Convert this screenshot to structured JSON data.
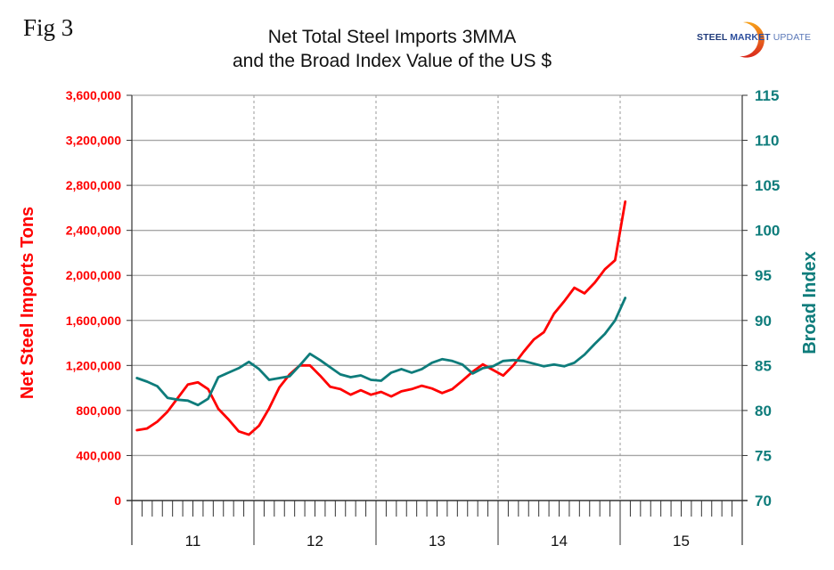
{
  "figure_label": "Fig 3",
  "logo": {
    "part1": "STEEL",
    "part2": "MARKET",
    "part3": "UPDATE"
  },
  "chart_data": {
    "type": "line",
    "title": "Net Total Steel Imports 3MMA",
    "subtitle": "and the Broad Index Value of the US $",
    "xlabel": "",
    "ylabel": "Net Steel Imports Tons",
    "ylabel_right": "Broad Index",
    "ylim": [
      0,
      3600000
    ],
    "ylim_right": [
      70,
      115
    ],
    "yticks": [
      "0",
      "400,000",
      "800,000",
      "1,200,000",
      "1,600,000",
      "2,000,000",
      "2,400,000",
      "2,800,000",
      "3,200,000",
      "3,600,000"
    ],
    "yticks_right": [
      "70",
      "75",
      "80",
      "85",
      "90",
      "95",
      "100",
      "105",
      "110",
      "115"
    ],
    "x_groups": [
      "11",
      "12",
      "13",
      "14",
      "15"
    ],
    "months_per_group": 12,
    "grid": "horizontal solid, vertical dotted at year boundaries",
    "legend": "none",
    "series": [
      {
        "name": "Net Steel Imports Tons (3MMA)",
        "axis": "left",
        "color": "#ff0000",
        "values": [
          625000,
          640000,
          700000,
          790000,
          910000,
          1030000,
          1050000,
          990000,
          815000,
          720000,
          615000,
          585000,
          665000,
          820000,
          1005000,
          1120000,
          1200000,
          1200000,
          1110000,
          1010000,
          990000,
          940000,
          980000,
          940000,
          965000,
          925000,
          970000,
          990000,
          1020000,
          995000,
          955000,
          990000,
          1065000,
          1145000,
          1210000,
          1160000,
          1110000,
          1200000,
          1320000,
          1430000,
          1495000,
          1660000,
          1770000,
          1890000,
          1840000,
          1935000,
          2055000,
          2135000,
          2655000
        ]
      },
      {
        "name": "Broad Index",
        "axis": "right",
        "color": "#0e7c7b",
        "values": [
          83.6,
          83.2,
          82.7,
          81.4,
          81.2,
          81.1,
          80.6,
          81.3,
          83.7,
          84.2,
          84.7,
          85.4,
          84.6,
          83.4,
          83.6,
          83.8,
          85.0,
          86.3,
          85.6,
          84.8,
          84.0,
          83.7,
          83.9,
          83.4,
          83.3,
          84.2,
          84.6,
          84.2,
          84.6,
          85.3,
          85.7,
          85.5,
          85.1,
          84.1,
          84.7,
          84.9,
          85.5,
          85.6,
          85.5,
          85.2,
          84.9,
          85.1,
          84.9,
          85.3,
          86.2,
          87.4,
          88.5,
          90.0,
          92.5
        ]
      }
    ]
  }
}
